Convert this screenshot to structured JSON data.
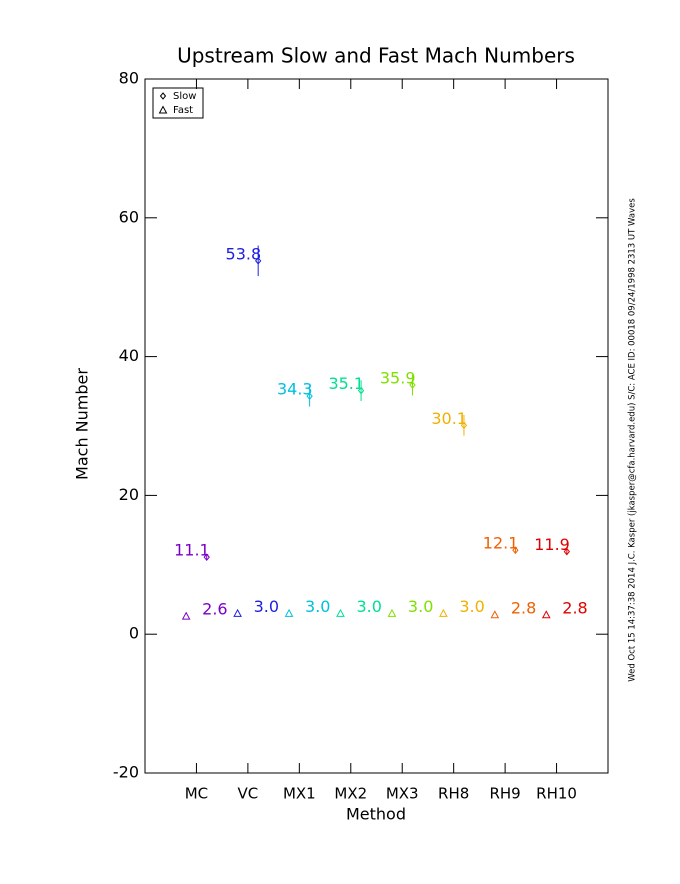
{
  "chart_data": {
    "type": "scatter",
    "title": "Upstream Slow and Fast Mach Numbers",
    "x_label": "Method",
    "y_label": "Mach Number",
    "annotation": "Wed Oct 15 14:37:38 2014  J.C. Kasper (jkasper@cfa.harvard.edu)  S/C: ACE ID: 00018 09/24/1998  2313 UT Waves",
    "categories": [
      "MC",
      "VC",
      "MX1",
      "MX2",
      "MX3",
      "RH8",
      "RH9",
      "RH10"
    ],
    "colors": [
      "#7a00c8",
      "#2020e0",
      "#00c0e0",
      "#00e090",
      "#80e000",
      "#f0b000",
      "#f06000",
      "#e00000"
    ],
    "ylim": [
      -20,
      80
    ],
    "yticks": [
      -20,
      0,
      20,
      40,
      60,
      80
    ],
    "legend": "top-left",
    "series": [
      {
        "name": "Slow",
        "marker": "diamond",
        "values": [
          11.1,
          53.8,
          34.3,
          35.1,
          35.9,
          30.1,
          12.1,
          11.9
        ],
        "errors": [
          0.4,
          2.2,
          1.5,
          1.5,
          1.5,
          1.5,
          0.5,
          0.5
        ]
      },
      {
        "name": "Fast",
        "marker": "triangle",
        "values": [
          2.6,
          3.0,
          3.0,
          3.0,
          3.0,
          3.0,
          2.8,
          2.8
        ],
        "value_labels": [
          "2.6",
          "3.0",
          "3.0",
          "3.0",
          "3.0",
          "3.0",
          "2.8",
          "2.8"
        ]
      }
    ]
  }
}
